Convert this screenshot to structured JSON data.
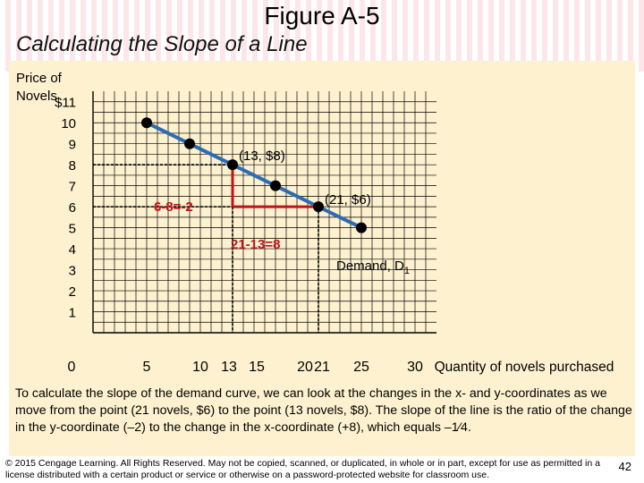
{
  "header": {
    "title": "Figure A-5",
    "subtitle": "Calculating the Slope of a Line"
  },
  "chart_data": {
    "type": "line",
    "title": "Calculating the Slope of a Line",
    "ylabel_lines": [
      "Price of",
      "Novels"
    ],
    "xlabel": "Quantity of novels purchased",
    "xlim": [
      0,
      32
    ],
    "ylim": [
      0,
      11.5
    ],
    "x_ticks": [
      {
        "value": 0,
        "label": "0"
      },
      {
        "value": 5,
        "label": "5"
      },
      {
        "value": 10,
        "label": "10"
      },
      {
        "value": 13,
        "label": "13"
      },
      {
        "value": 15,
        "label": "15"
      },
      {
        "value": 20,
        "label": "20"
      },
      {
        "value": 21,
        "label": "21"
      },
      {
        "value": 25,
        "label": "25"
      },
      {
        "value": 30,
        "label": "30"
      }
    ],
    "y_ticks": [
      {
        "value": 1,
        "label": "1"
      },
      {
        "value": 2,
        "label": "2"
      },
      {
        "value": 3,
        "label": "3"
      },
      {
        "value": 4,
        "label": "4"
      },
      {
        "value": 5,
        "label": "5"
      },
      {
        "value": 6,
        "label": "6"
      },
      {
        "value": 7,
        "label": "7"
      },
      {
        "value": 8,
        "label": "8"
      },
      {
        "value": 9,
        "label": "9"
      },
      {
        "value": 10,
        "label": "10"
      },
      {
        "value": 11,
        "label": "$11"
      }
    ],
    "grid": true,
    "series": [
      {
        "name": "Demand, D",
        "name_subscript": "1",
        "color": "#2b6cb4",
        "x": [
          5,
          9,
          13,
          17,
          21,
          25
        ],
        "y": [
          10,
          9,
          8,
          7,
          6,
          5
        ]
      }
    ],
    "point_labels": [
      {
        "text": "(13, $8)",
        "x": 13,
        "y": 8
      },
      {
        "text": "(21, $6)",
        "x": 21,
        "y": 6
      }
    ],
    "annotations": [
      {
        "text": "6-8=-2",
        "color": "#c0121b"
      },
      {
        "text": "21-13=8",
        "color": "#c0121b"
      }
    ],
    "highlight_color": "#c0121b"
  },
  "caption": "To calculate the slope of the demand curve, we can look at the changes in the x- and y-coordinates as we move from the point (21 novels, $6) to the point (13 novels, $8). The slope of the line is the ratio of the change in the y-coordinate (–2) to the change in the x-coordinate (+8), which equals –1⁄4.",
  "footer": {
    "copyright": "© 2015 Cengage Learning. All Rights Reserved. May not be copied, scanned, or duplicated, in whole or in part, except for use as permitted in a license distributed with a certain product or service or otherwise on a password-protected website for classroom use.",
    "page_number": "42"
  }
}
